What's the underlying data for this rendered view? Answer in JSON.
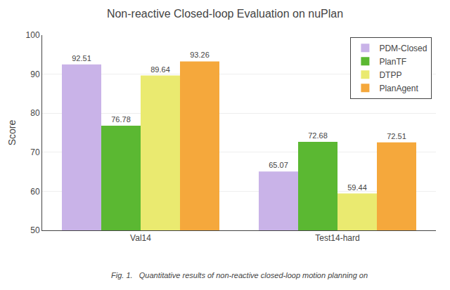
{
  "chart_data": {
    "type": "bar",
    "title": "Non-reactive Closed-loop Evaluation on nuPlan",
    "y_label": "Score",
    "annotations": [
      "Fig. 1.   Quantitative results of non-reactive closed-loop motion planning on"
    ],
    "categories": [
      "Val14",
      "Test14-hard"
    ],
    "series": [
      {
        "name": "PDM-Closed",
        "color": "#c9b3e8",
        "values": [
          92.51,
          65.07
        ]
      },
      {
        "name": "PlanTF",
        "color": "#5bb832",
        "values": [
          76.78,
          72.68
        ]
      },
      {
        "name": "DTPP",
        "color": "#eaea70",
        "values": [
          89.64,
          59.44
        ]
      },
      {
        "name": "PlanAgent",
        "color": "#f5a83c",
        "values": [
          93.26,
          72.51
        ]
      }
    ],
    "ylim": [
      50,
      100
    ],
    "yticks": [
      50,
      60,
      70,
      80,
      90,
      100
    ],
    "grid": true,
    "legend": "upper right",
    "data_labels": true
  }
}
